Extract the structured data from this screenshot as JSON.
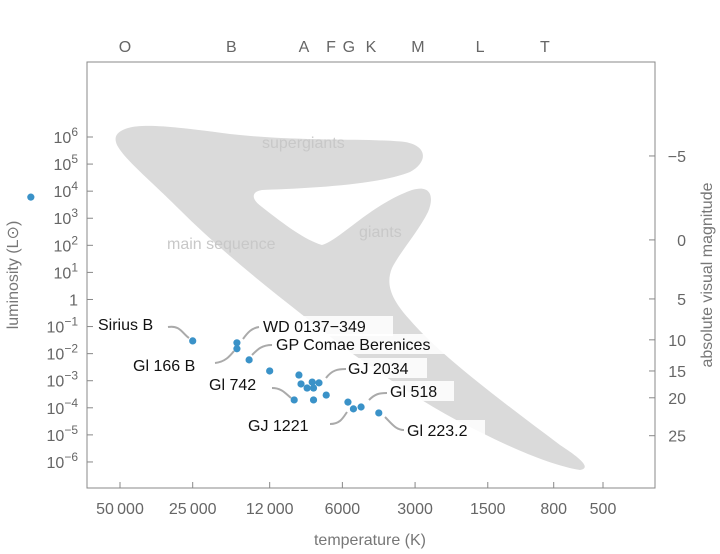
{
  "chart_data": {
    "type": "scatter",
    "title": "",
    "xlabel": "temperature (K)",
    "ylabel": "luminosity (L⊙)",
    "y2label": "absolute visual magnitude",
    "xscale": "log-reversed",
    "yscale": "log",
    "xlim": [
      50000,
      500
    ],
    "ylim_log10": [
      -6,
      6
    ],
    "x_ticks": [
      50000,
      25000,
      12000,
      6000,
      3000,
      1500,
      800,
      500
    ],
    "x_tick_labels": [
      "50 000",
      "25 000",
      "12 000",
      "6000",
      "3000",
      "1500",
      "800",
      "500"
    ],
    "y_ticks": [
      {
        "log": 6,
        "label": "10",
        "exp": "6"
      },
      {
        "log": 5,
        "label": "10",
        "exp": "5"
      },
      {
        "log": 4,
        "label": "10",
        "exp": "4"
      },
      {
        "log": 3,
        "label": "10",
        "exp": "3"
      },
      {
        "log": 2,
        "label": "10",
        "exp": "2"
      },
      {
        "log": 1,
        "label": "10",
        "exp": "1"
      },
      {
        "log": 0,
        "label": "1",
        "exp": ""
      },
      {
        "log": -1,
        "label": "10",
        "exp": "−1"
      },
      {
        "log": -2,
        "label": "10",
        "exp": "−2"
      },
      {
        "log": -3,
        "label": "10",
        "exp": "−3"
      },
      {
        "log": -4,
        "label": "10",
        "exp": "−4"
      },
      {
        "log": -5,
        "label": "10",
        "exp": "−5"
      },
      {
        "log": -6,
        "label": "10",
        "exp": "−6"
      }
    ],
    "magnitude_ticks": [
      {
        "label": "−5",
        "log_luminosity": 5.3
      },
      {
        "label": "0",
        "log_luminosity": 2.2
      },
      {
        "label": "5",
        "log_luminosity": 0.02
      },
      {
        "label": "10",
        "log_luminosity": -1.49
      },
      {
        "label": "15",
        "log_luminosity": -2.64
      },
      {
        "label": "20",
        "log_luminosity": -3.63
      },
      {
        "label": "25",
        "log_luminosity": -5.03
      }
    ],
    "spectral_classes": [
      {
        "label": "O",
        "temperature": 47700
      },
      {
        "label": "B",
        "temperature": 17300
      },
      {
        "label": "A",
        "temperature": 8650
      },
      {
        "label": "F",
        "temperature": 6690
      },
      {
        "label": "G",
        "temperature": 5640
      },
      {
        "label": "K",
        "temperature": 4570
      },
      {
        "label": "M",
        "temperature": 2920
      },
      {
        "label": "L",
        "temperature": 1615
      },
      {
        "label": "T",
        "temperature": 870
      }
    ],
    "regions": [
      "supergiants",
      "giants",
      "main sequence"
    ],
    "point_color": "#3a92c8",
    "region_color": "#dadada",
    "points": [
      {
        "name": "Sirius B",
        "temperature": 25000,
        "log_luminosity": -1.53
      },
      {
        "name": "WD 0137−349",
        "temperature": 16400,
        "log_luminosity": -1.6
      },
      {
        "name": "Gl 166 B",
        "temperature": 16400,
        "log_luminosity": -1.82
      },
      {
        "name": "GP Comae Berenices",
        "temperature": 14600,
        "log_luminosity": -2.23
      },
      {
        "name": "",
        "temperature": 12000,
        "log_luminosity": -2.64
      },
      {
        "name": "",
        "temperature": 9080,
        "log_luminosity": -2.79
      },
      {
        "name": "",
        "temperature": 8900,
        "log_luminosity": -3.12
      },
      {
        "name": "",
        "temperature": 8400,
        "log_luminosity": -3.27
      },
      {
        "name": "",
        "temperature": 8000,
        "log_luminosity": -3.05
      },
      {
        "name": "GJ 2034",
        "temperature": 7500,
        "log_luminosity": -3.08
      },
      {
        "name": "",
        "temperature": 7900,
        "log_luminosity": -3.27
      },
      {
        "name": "",
        "temperature": 7900,
        "log_luminosity": -3.71
      },
      {
        "name": "",
        "temperature": 7000,
        "log_luminosity": -3.53
      },
      {
        "name": "Gl 742",
        "temperature": 9500,
        "log_luminosity": -3.71
      },
      {
        "name": "",
        "temperature": 5690,
        "log_luminosity": -3.79
      },
      {
        "name": "GJ 1221",
        "temperature": 5400,
        "log_luminosity": -4.04
      },
      {
        "name": "Gl 518",
        "temperature": 5020,
        "log_luminosity": -3.97
      },
      {
        "name": "Gl 223.2",
        "temperature": 4240,
        "log_luminosity": -4.19
      },
      {
        "name": "",
        "temperature": 117000,
        "log_luminosity": 3.78
      }
    ]
  }
}
